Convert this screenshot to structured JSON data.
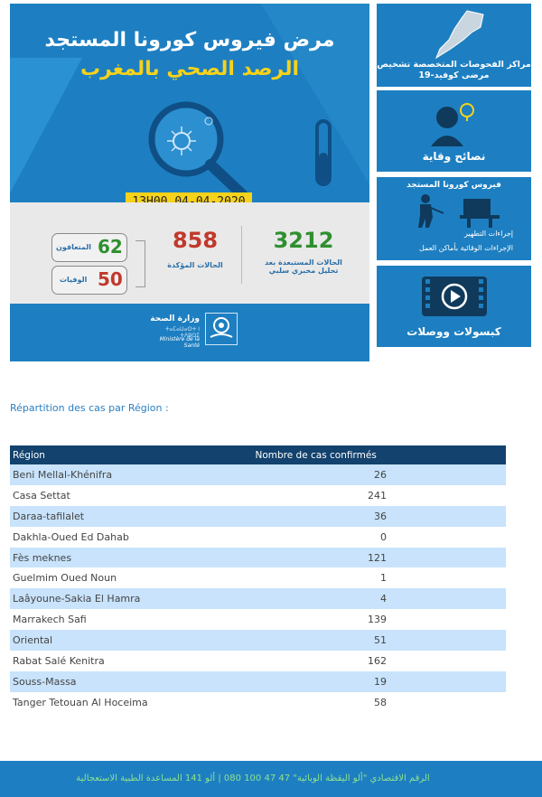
{
  "hero": {
    "title_line1": "مرض فيروس كورونا المستجد",
    "title_line2": "الرصد الصحي بالمغرب",
    "date_badge": "13H00  04-04-2020",
    "stats": {
      "excluded_value": "3212",
      "excluded_label": "الحالات المستبعدة بعد تحليل مخبري سلبي",
      "confirmed_value": "858",
      "confirmed_label": "الحالات المؤكدة",
      "recovered_value": "62",
      "recovered_label": "المتعافون",
      "deaths_value": "50",
      "deaths_label": "الوفيات"
    },
    "ministry": {
      "arabic": "وزارة الصحة",
      "tifinagh": "ⵜⴰⵎⴰⵡⴰⵙⵜ ⵏ ⵜⴷⵓⵙⵉ",
      "french": "Ministère de la Santé"
    }
  },
  "cards": [
    {
      "title": "مراكز الفحوصات المتخصصة تشخيص مرضى كوفيد-19"
    },
    {
      "title": "نصائح وقاية"
    },
    {
      "title": "فيروس كورونا المستجد",
      "items": [
        "إجراءات التطهير",
        "الإجراءات الوقائية بأماكن العمل"
      ]
    },
    {
      "title": "كبسولات ووصلات"
    }
  ],
  "section_title": "Répartition des cas par Région :",
  "table": {
    "headers": [
      "Région",
      "Nombre de cas confirmés"
    ],
    "rows": [
      [
        "Beni Mellal-Khénifra",
        "26"
      ],
      [
        "Casa Settat",
        "241"
      ],
      [
        "Daraa-tafilalet",
        "36"
      ],
      [
        "Dakhla-Oued Ed Dahab",
        "0"
      ],
      [
        "Fès meknes",
        "121"
      ],
      [
        "Guelmim Oued Noun",
        "1"
      ],
      [
        "Laâyoune-Sakia El Hamra",
        "4"
      ],
      [
        "Marrakech Safi",
        "139"
      ],
      [
        "Oriental",
        "51"
      ],
      [
        "Rabat Salé Kenitra",
        "162"
      ],
      [
        "Souss-Massa",
        "19"
      ],
      [
        "Tanger Tetouan Al Hoceima",
        "58"
      ]
    ]
  },
  "footer": {
    "text": "الرقم الاقتصادي \"ألو اليقظة الوبائية\" 47 47 100 080   |   ألو 141 المساعدة الطبية الاستعجالية"
  }
}
